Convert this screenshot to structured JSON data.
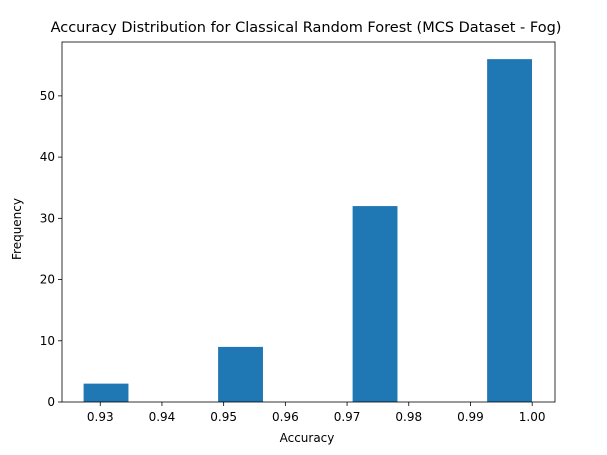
{
  "chart_data": {
    "type": "bar",
    "title": "Accuracy Distribution for Classical Random Forest (MCS Dataset - Fog)",
    "xlabel": "Accuracy",
    "ylabel": "Frequency",
    "xlim": [
      0.9238,
      1.0037
    ],
    "ylim": [
      0,
      58.8
    ],
    "grid": false,
    "bin_width": 0.00727,
    "bins": [
      {
        "start": 0.9273,
        "count": 3
      },
      {
        "start": 0.9345,
        "count": 0
      },
      {
        "start": 0.9418,
        "count": 0
      },
      {
        "start": 0.9491,
        "count": 9
      },
      {
        "start": 0.9564,
        "count": 0
      },
      {
        "start": 0.9636,
        "count": 0
      },
      {
        "start": 0.9709,
        "count": 32
      },
      {
        "start": 0.9782,
        "count": 0
      },
      {
        "start": 0.9855,
        "count": 0
      },
      {
        "start": 0.9927,
        "count": 56
      }
    ],
    "x_ticks": [
      0.93,
      0.94,
      0.95,
      0.96,
      0.97,
      0.98,
      0.99,
      1.0
    ],
    "x_tick_labels": [
      "0.93",
      "0.94",
      "0.95",
      "0.96",
      "0.97",
      "0.98",
      "0.99",
      "1.00"
    ],
    "y_ticks": [
      0,
      10,
      20,
      30,
      40,
      50
    ],
    "y_tick_labels": [
      "0",
      "10",
      "20",
      "30",
      "40",
      "50"
    ],
    "bar_color": "#1f77b4"
  }
}
